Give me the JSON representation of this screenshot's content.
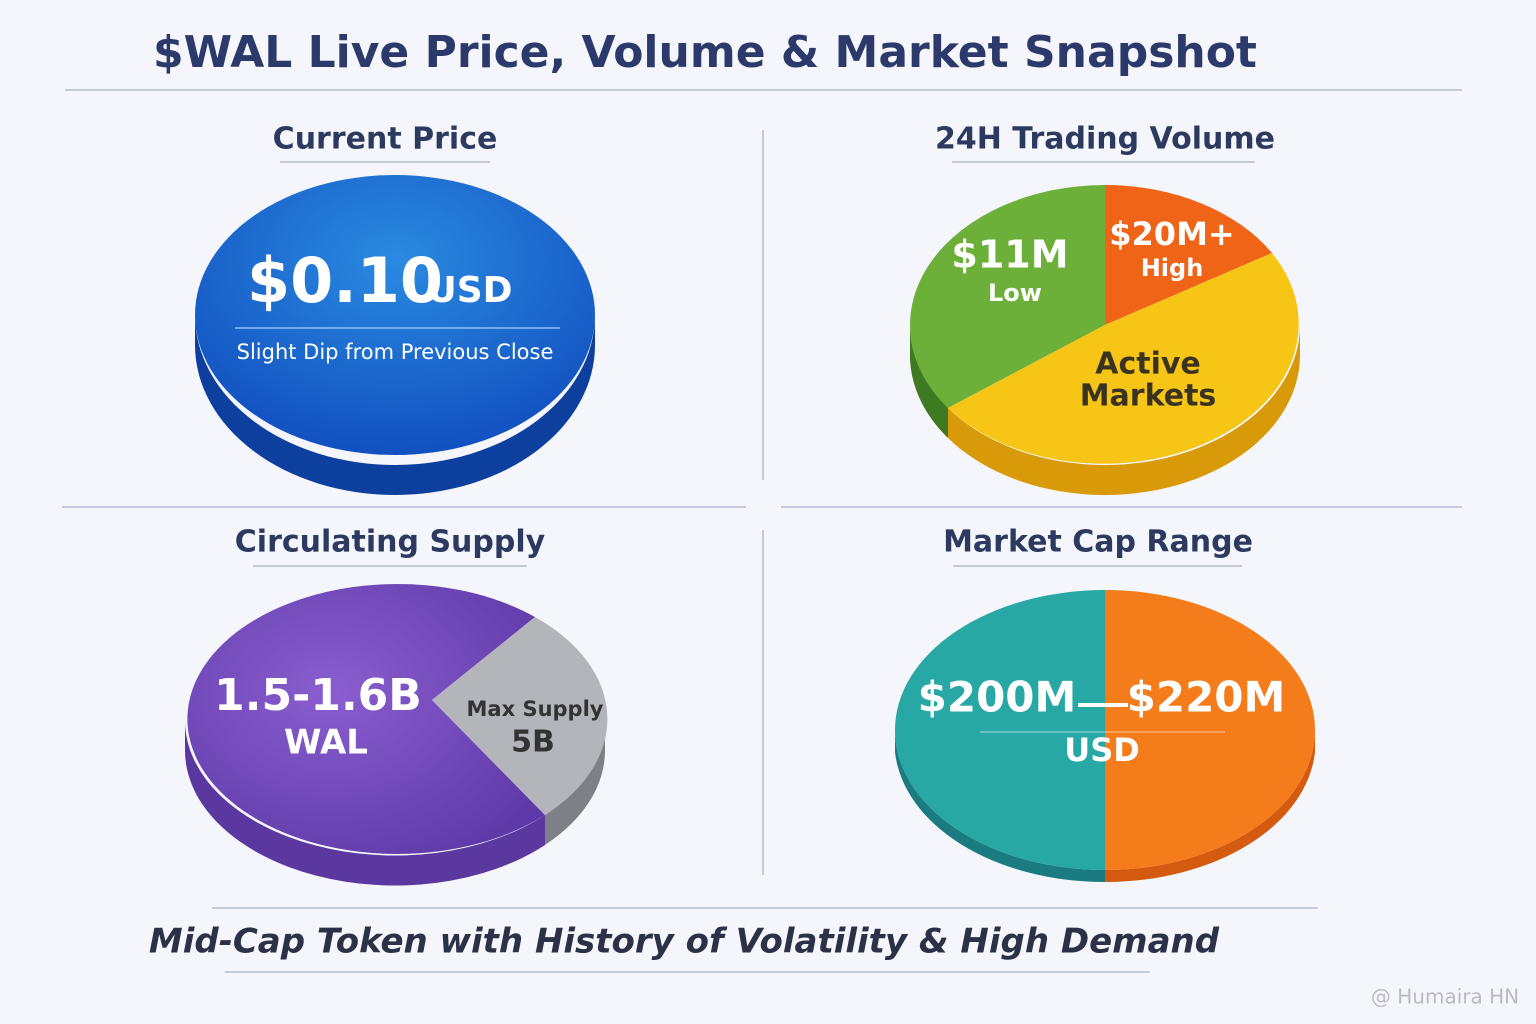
{
  "title": "$WAL Live Price, Volume & Market Snapshot",
  "panels": [
    {
      "heading": "Current Price",
      "price": "$0.10",
      "unit": "USD",
      "note": "Slight Dip from Previous Close"
    },
    {
      "heading": "24H Trading Volume",
      "low_value": "$11M",
      "low_label": "Low",
      "high_value": "$20M+",
      "high_label": "High",
      "middle_line1": "Active",
      "middle_line2": "Markets"
    },
    {
      "heading": "Circulating Supply",
      "circulating": "1.5-1.6B",
      "token": "WAL",
      "max_label": "Max Supply",
      "max_value": "5B"
    },
    {
      "heading": "Market Cap Range",
      "low": "$200M",
      "high": "$220M",
      "unit": "USD"
    }
  ],
  "footer": "Mid-Cap Token with History of Volatility & High Demand",
  "watermark": "@ Humaira HN"
}
